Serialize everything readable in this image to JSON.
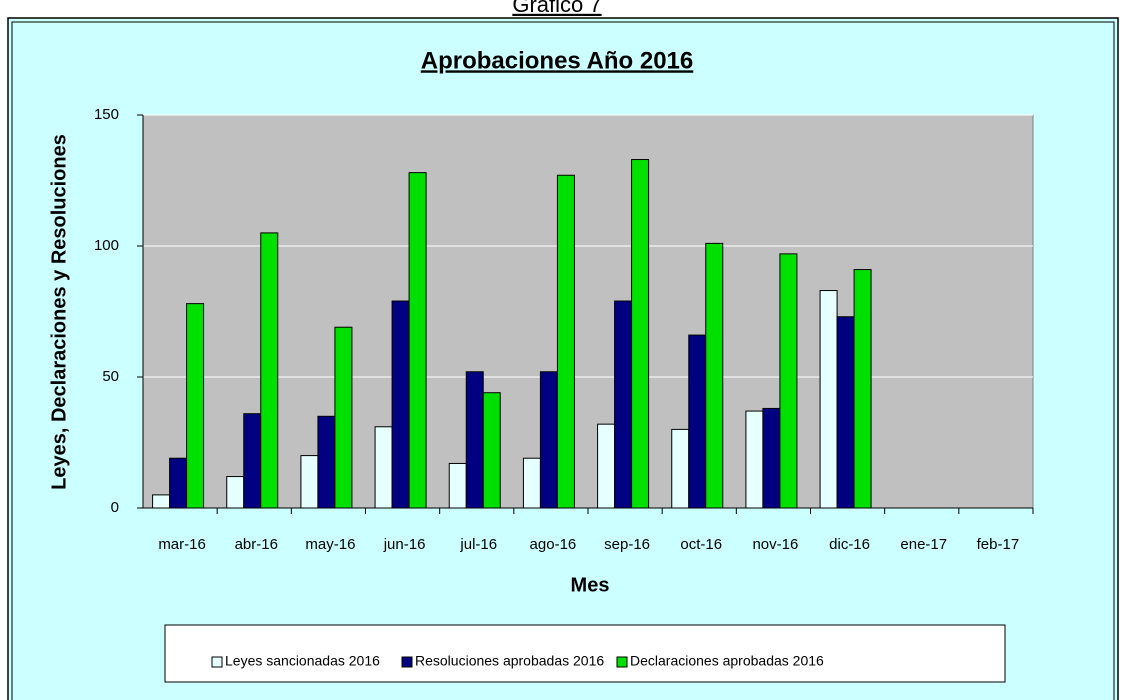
{
  "caption": "Gráfico 7",
  "chart_data": {
    "type": "bar",
    "title": "Aprobaciones Año 2016",
    "x_label": "Mes",
    "y_label": "Leyes, Declaraciones y Resoluciones",
    "categories": [
      "mar-16",
      "abr-16",
      "may-16",
      "jun-16",
      "jul-16",
      "ago-16",
      "sep-16",
      "oct-16",
      "nov-16",
      "dic-16",
      "ene-17",
      "feb-17"
    ],
    "series": [
      {
        "name": "Leyes sancionadas 2016",
        "color": "#e6ffff",
        "values": [
          5,
          12,
          20,
          31,
          17,
          19,
          32,
          30,
          37,
          83,
          0,
          0
        ]
      },
      {
        "name": "Resoluciones aprobadas 2016",
        "color": "#000080",
        "values": [
          19,
          36,
          35,
          79,
          52,
          52,
          79,
          66,
          38,
          73,
          0,
          0
        ]
      },
      {
        "name": "Declaraciones aprobadas 2016",
        "color": "#00e000",
        "values": [
          78,
          105,
          69,
          128,
          44,
          127,
          133,
          101,
          97,
          91,
          0,
          0
        ]
      }
    ],
    "ylim": [
      0,
      150
    ],
    "yticks": [
      0,
      50,
      100,
      150
    ],
    "grid": true,
    "legend": "bottom"
  }
}
